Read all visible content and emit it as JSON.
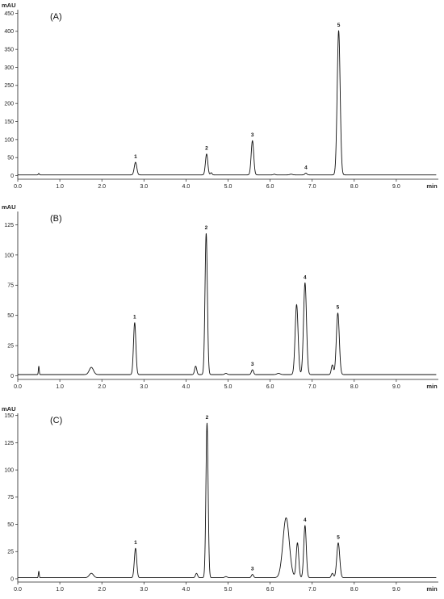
{
  "chart_data": [
    {
      "type": "line",
      "panel_label": "(A)",
      "ylabel": "mAU",
      "xlabel": "min",
      "xlim": [
        0,
        10
      ],
      "ylim": [
        -10,
        460
      ],
      "yticks": [
        0,
        50,
        100,
        150,
        200,
        250,
        300,
        350,
        400,
        450
      ],
      "xticks": [
        0.0,
        1.0,
        2.0,
        3.0,
        4.0,
        5.0,
        6.0,
        7.0,
        8.0,
        9.0
      ],
      "xtick_labels": [
        "0.0",
        "1.0",
        "2.0",
        "3.0",
        "4.0",
        "5.0",
        "6.0",
        "7.0",
        "8.0",
        "9.0"
      ],
      "baseline": 2,
      "peaks": [
        {
          "t": 0.5,
          "h": 4,
          "w": 0.012,
          "label": ""
        },
        {
          "t": 2.8,
          "h": 35,
          "w": 0.03,
          "label": "1"
        },
        {
          "t": 4.49,
          "h": 58,
          "w": 0.028,
          "label": "2"
        },
        {
          "t": 4.6,
          "h": 6,
          "w": 0.02,
          "label": ""
        },
        {
          "t": 5.58,
          "h": 95,
          "w": 0.03,
          "label": "3"
        },
        {
          "t": 6.1,
          "h": 2,
          "w": 0.02,
          "label": ""
        },
        {
          "t": 6.5,
          "h": 2,
          "w": 0.03,
          "label": ""
        },
        {
          "t": 6.85,
          "h": 5,
          "w": 0.025,
          "label": "4"
        },
        {
          "t": 7.63,
          "h": 400,
          "w": 0.035,
          "label": "5"
        }
      ]
    },
    {
      "type": "line",
      "panel_label": "(B)",
      "ylabel": "mAU",
      "xlabel": "min",
      "xlim": [
        0,
        10
      ],
      "ylim": [
        -3,
        136
      ],
      "yticks": [
        0,
        25,
        50,
        75,
        100,
        125
      ],
      "xticks": [
        0.0,
        1.0,
        2.0,
        3.0,
        4.0,
        5.0,
        6.0,
        7.0,
        8.0,
        9.0
      ],
      "xtick_labels": [
        "0.0",
        "1.0",
        "2.0",
        "3.0",
        "4.0",
        "5.0",
        "6.0",
        "7.0",
        "8.0",
        "9.0"
      ],
      "baseline": 1,
      "peaks": [
        {
          "t": 0.5,
          "h": 7,
          "w": 0.01,
          "label": ""
        },
        {
          "t": 1.75,
          "h": 6,
          "w": 0.05,
          "label": ""
        },
        {
          "t": 2.78,
          "h": 43,
          "w": 0.028,
          "label": "1"
        },
        {
          "t": 4.23,
          "h": 7,
          "w": 0.025,
          "label": ""
        },
        {
          "t": 4.48,
          "h": 117,
          "w": 0.028,
          "label": "2"
        },
        {
          "t": 4.95,
          "h": 1,
          "w": 0.03,
          "label": ""
        },
        {
          "t": 5.58,
          "h": 4,
          "w": 0.025,
          "label": "3"
        },
        {
          "t": 6.2,
          "h": 1,
          "w": 0.04,
          "label": ""
        },
        {
          "t": 6.63,
          "h": 58,
          "w": 0.035,
          "label": ""
        },
        {
          "t": 6.83,
          "h": 76,
          "w": 0.035,
          "label": "4"
        },
        {
          "t": 7.48,
          "h": 8,
          "w": 0.025,
          "label": ""
        },
        {
          "t": 7.61,
          "h": 51,
          "w": 0.035,
          "label": "5"
        }
      ]
    },
    {
      "type": "line",
      "panel_label": "(C)",
      "ylabel": "mAU",
      "xlabel": "min",
      "xlim": [
        0,
        10
      ],
      "ylim": [
        -3,
        152
      ],
      "yticks": [
        0,
        25,
        50,
        75,
        100,
        125,
        150
      ],
      "xticks": [
        0.0,
        1.0,
        2.0,
        3.0,
        4.0,
        5.0,
        6.0,
        7.0,
        8.0,
        9.0
      ],
      "xtick_labels": [
        "0.0",
        "1.0",
        "2.0",
        "3.0",
        "4.0",
        "5.0",
        "6.0",
        "7.0",
        "8.0",
        "9.0"
      ],
      "baseline": 1,
      "peaks": [
        {
          "t": 0.5,
          "h": 6,
          "w": 0.01,
          "label": ""
        },
        {
          "t": 1.75,
          "h": 4,
          "w": 0.05,
          "label": ""
        },
        {
          "t": 2.8,
          "h": 27,
          "w": 0.028,
          "label": "1"
        },
        {
          "t": 4.25,
          "h": 4,
          "w": 0.025,
          "label": ""
        },
        {
          "t": 4.5,
          "h": 142,
          "w": 0.026,
          "label": "2"
        },
        {
          "t": 4.95,
          "h": 1,
          "w": 0.03,
          "label": ""
        },
        {
          "t": 5.58,
          "h": 3,
          "w": 0.025,
          "label": "3"
        },
        {
          "t": 6.38,
          "h": 55,
          "w": 0.075,
          "label": ""
        },
        {
          "t": 6.65,
          "h": 32,
          "w": 0.03,
          "label": ""
        },
        {
          "t": 6.83,
          "h": 48,
          "w": 0.03,
          "label": "4"
        },
        {
          "t": 7.48,
          "h": 4,
          "w": 0.025,
          "label": ""
        },
        {
          "t": 7.62,
          "h": 32,
          "w": 0.035,
          "label": "5"
        }
      ]
    }
  ]
}
